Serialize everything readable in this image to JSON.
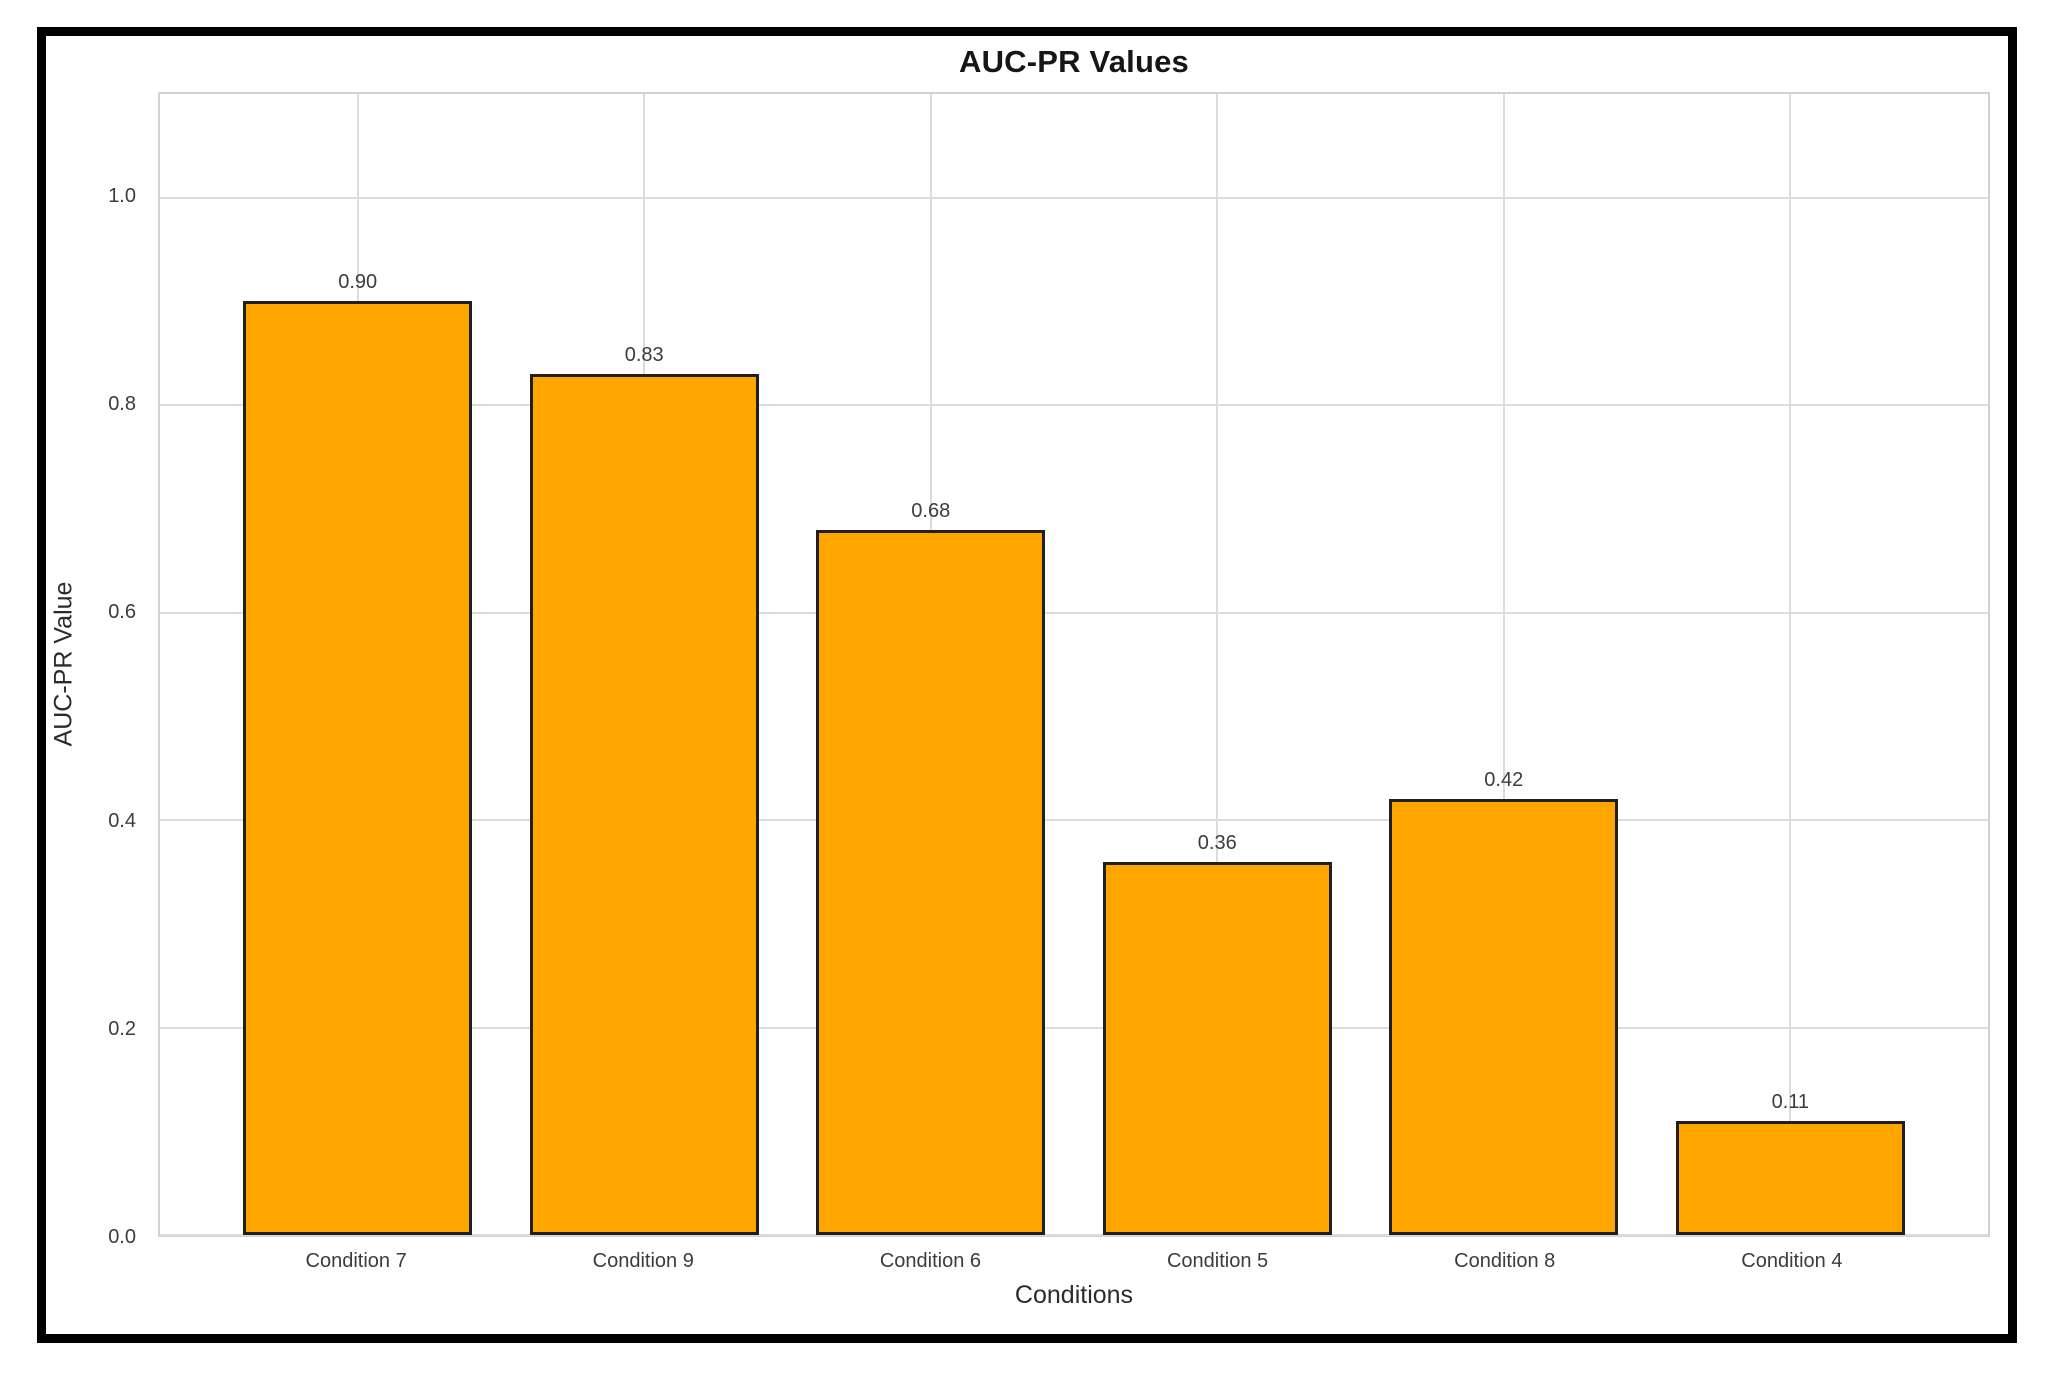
{
  "chart_data": {
    "type": "bar",
    "title": "AUC-PR Values",
    "xlabel": "Conditions",
    "ylabel": "AUC-PR Value",
    "categories": [
      "Condition 7",
      "Condition 9",
      "Condition 6",
      "Condition 5",
      "Condition 8",
      "Condition 4"
    ],
    "values": [
      0.9,
      0.83,
      0.68,
      0.36,
      0.42,
      0.11
    ],
    "bar_labels": [
      "0.90",
      "0.83",
      "0.68",
      "0.36",
      "0.42",
      "0.11"
    ],
    "y_ticks": [
      0.0,
      0.2,
      0.4,
      0.6,
      0.8,
      1.0
    ],
    "y_tick_labels": [
      "0.0",
      "0.2",
      "0.4",
      "0.6",
      "0.8",
      "1.0"
    ],
    "ylim": [
      0,
      1.1
    ],
    "xlim": [
      -0.69,
      5.69
    ],
    "bar_width": 0.8,
    "grid": true,
    "legend": "none",
    "colors": {
      "bar_fill": "#FFA500",
      "bar_edge": "#1f1f1f",
      "gridline": "#dcdcdc",
      "spine": "#d2d2d2",
      "tick_text": "#3c3c3c",
      "axis_label_text": "#2b2b2b",
      "title_text": "#161616",
      "figure_frame": "#000000",
      "background": "#ffffff"
    }
  }
}
